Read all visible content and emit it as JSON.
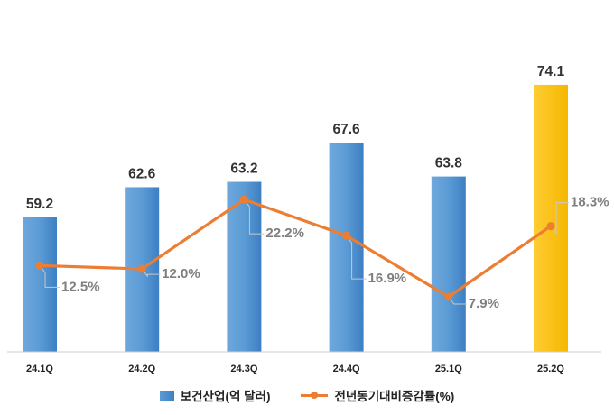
{
  "chart_data": {
    "type": "bar",
    "categories": [
      "24.1Q",
      "24.2Q",
      "24.3Q",
      "24.4Q",
      "25.1Q",
      "25.2Q"
    ],
    "series": [
      {
        "name": "보건산업(억 달러)",
        "type": "bar",
        "values": [
          59.2,
          62.6,
          63.2,
          67.6,
          63.8,
          74.1
        ],
        "value_labels": [
          "59.2",
          "62.6",
          "63.2",
          "67.6",
          "63.8",
          "74.1"
        ],
        "color": "#5b9bd5",
        "highlight_color": "#ffc000",
        "highlight_index": 5
      },
      {
        "name": "전년동기대비증감률(%)",
        "type": "line",
        "values": [
          12.5,
          12.0,
          22.2,
          16.9,
          7.9,
          18.3
        ],
        "value_labels": [
          "12.5%",
          "12.0%",
          "22.2%",
          "16.9%",
          "7.9%",
          "18.3%"
        ],
        "color": "#ed7d31"
      }
    ],
    "title": "",
    "xlabel": "",
    "ylabel": "",
    "legend_position": "bottom",
    "grid": false
  }
}
